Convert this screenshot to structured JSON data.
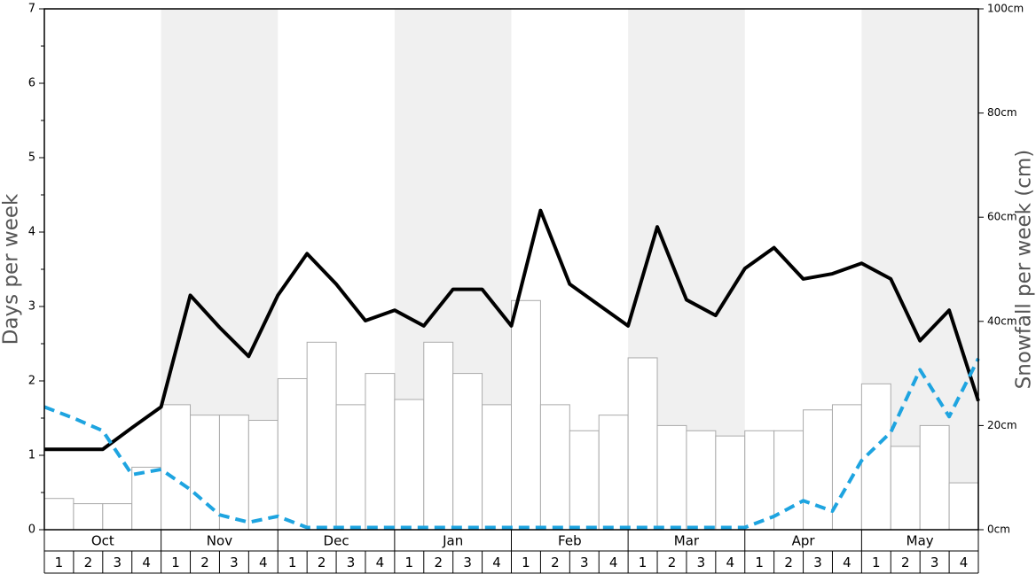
{
  "chart_data": {
    "type": "bar_line",
    "ylabel": "Days per week",
    "y2label": "Snowfall per week (cm)",
    "months": [
      "Oct",
      "Nov",
      "Dec",
      "Jan",
      "Feb",
      "Mar",
      "Apr",
      "May"
    ],
    "weeks": [
      "1",
      "2",
      "3",
      "4"
    ],
    "shaded": [
      false,
      true,
      false,
      true,
      false,
      true,
      false,
      true
    ],
    "shade_color": "#f0f0f0",
    "ylim": [
      0,
      7
    ],
    "yticks": [
      0,
      1,
      2,
      3,
      4,
      5,
      6,
      7
    ],
    "y2lim": [
      0,
      100
    ],
    "y2ticks": [
      {
        "value": 0,
        "label": "0cm"
      },
      {
        "value": 20,
        "label": "20cm"
      },
      {
        "value": 40,
        "label": "40cm"
      },
      {
        "value": 60,
        "label": "60cm"
      },
      {
        "value": 80,
        "label": "80cm"
      },
      {
        "value": 100,
        "label": "100cm"
      }
    ],
    "bars": {
      "axis": "y2",
      "color": "#ffffff",
      "edge": "#aaaaaa",
      "values": [
        6,
        5,
        5,
        12,
        24,
        22,
        22,
        21,
        29,
        36,
        24,
        30,
        25,
        36,
        30,
        24,
        44,
        24,
        19,
        22,
        33,
        20,
        19,
        18,
        19,
        19,
        23,
        24,
        28,
        16,
        20,
        9
      ]
    },
    "lines": [
      {
        "color": "#000000",
        "dashed": false,
        "values": [
          1.08,
          1.08,
          1.08,
          1.37,
          1.65,
          3.15,
          2.72,
          2.33,
          3.15,
          3.71,
          3.3,
          2.81,
          2.95,
          2.74,
          3.23,
          3.23,
          2.74,
          4.29,
          3.3,
          3.02,
          2.74,
          4.07,
          3.09,
          2.88,
          3.51,
          3.79,
          3.37,
          3.44,
          3.58,
          3.37,
          2.54,
          2.95,
          1.73
        ]
      },
      {
        "color": "#1ea4e0",
        "dashed": true,
        "values": [
          1.65,
          1.5,
          1.33,
          0.74,
          0.81,
          0.54,
          0.2,
          0.1,
          0.18,
          0.03,
          0.03,
          0.03,
          0.03,
          0.03,
          0.03,
          0.03,
          0.03,
          0.03,
          0.03,
          0.03,
          0.03,
          0.03,
          0.03,
          0.03,
          0.03,
          0.18,
          0.39,
          0.25,
          0.93,
          1.31,
          2.15,
          1.52,
          2.3
        ]
      }
    ]
  }
}
